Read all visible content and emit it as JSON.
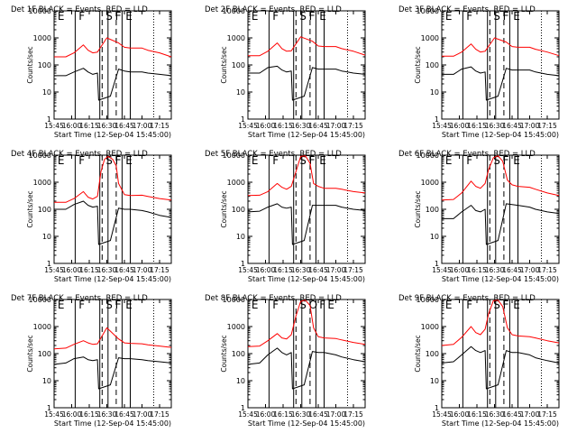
{
  "figure": {
    "ylabel": "Counts/sec",
    "xlabel": "Start Time (12-Sep-04 15:45:00)",
    "colors": {
      "events": "#000000",
      "lld": "#ff0000",
      "axes": "#000000",
      "background": "#ffffff"
    }
  },
  "chart_data": [
    {
      "type": "line",
      "title": "Det 1F BLACK = Events, RED = LLD",
      "xlabel": "Start Time (12-Sep-04 15:45:00)",
      "ylabel": "Counts/sec",
      "xlim": [
        "15:45",
        "17:25"
      ],
      "ylim": [
        1,
        10000
      ],
      "yscale": "log",
      "x_ticks": [
        "15:45",
        "16:00",
        "16:15",
        "16:30",
        "16:45",
        "17:00",
        "17:15"
      ],
      "y_ticks": [
        "1",
        "10",
        "100",
        "1000",
        "10000"
      ],
      "phase_letters": [
        "E",
        "F",
        "S",
        "F",
        "E"
      ],
      "series": [
        {
          "name": "Events",
          "color": "#000000",
          "x": [
            "15:45",
            "15:55",
            "16:02",
            "16:10",
            "16:14",
            "16:18",
            "16:22",
            "16:23",
            "16:33",
            "16:40",
            "16:45",
            "16:50",
            "17:00",
            "17:05",
            "17:15",
            "17:25"
          ],
          "y": [
            40,
            40,
            55,
            75,
            55,
            45,
            50,
            5,
            7,
            70,
            60,
            55,
            55,
            50,
            45,
            40
          ]
        },
        {
          "name": "LLD",
          "color": "#ff0000",
          "x": [
            "15:45",
            "15:55",
            "16:02",
            "16:10",
            "16:14",
            "16:18",
            "16:22",
            "16:30",
            "16:40",
            "16:45",
            "16:50",
            "17:00",
            "17:05",
            "17:15",
            "17:25"
          ],
          "y": [
            200,
            200,
            280,
            550,
            350,
            280,
            300,
            1000,
            650,
            450,
            420,
            420,
            350,
            280,
            200
          ]
        }
      ]
    },
    {
      "type": "line",
      "title": "Det 2F BLACK = Events, RED = LLD",
      "xlabel": "Start Time (12-Sep-04 15:45:00)",
      "ylabel": "Counts/sec",
      "xlim": [
        "15:45",
        "17:25"
      ],
      "ylim": [
        1,
        10000
      ],
      "yscale": "log",
      "x_ticks": [
        "15:45",
        "16:00",
        "16:15",
        "16:30",
        "16:45",
        "17:00",
        "17:15"
      ],
      "y_ticks": [
        "1",
        "10",
        "100",
        "1000",
        "10000"
      ],
      "phase_letters": [
        "E",
        "F",
        "S",
        "F",
        "E"
      ],
      "series": [
        {
          "name": "Events",
          "color": "#000000",
          "x": [
            "15:45",
            "15:55",
            "16:02",
            "16:10",
            "16:14",
            "16:18",
            "16:22",
            "16:23",
            "16:33",
            "16:40",
            "16:45",
            "16:50",
            "17:00",
            "17:05",
            "17:15",
            "17:25"
          ],
          "y": [
            50,
            50,
            80,
            90,
            65,
            55,
            60,
            5,
            7,
            80,
            70,
            70,
            70,
            60,
            50,
            45
          ]
        },
        {
          "name": "LLD",
          "color": "#ff0000",
          "x": [
            "15:45",
            "15:55",
            "16:02",
            "16:10",
            "16:14",
            "16:18",
            "16:22",
            "16:30",
            "16:40",
            "16:45",
            "16:50",
            "17:00",
            "17:05",
            "17:15",
            "17:25"
          ],
          "y": [
            220,
            220,
            320,
            650,
            400,
            320,
            330,
            1100,
            750,
            500,
            480,
            480,
            400,
            320,
            230
          ]
        }
      ]
    },
    {
      "type": "line",
      "title": "Det 3F BLACK = Events, RED = LLD",
      "xlabel": "Start Time (12-Sep-04 15:45:00)",
      "ylabel": "Counts/sec",
      "xlim": [
        "15:45",
        "17:25"
      ],
      "ylim": [
        1,
        10000
      ],
      "yscale": "log",
      "x_ticks": [
        "15:45",
        "16:00",
        "16:15",
        "16:30",
        "16:45",
        "17:00",
        "17:15"
      ],
      "y_ticks": [
        "1",
        "10",
        "100",
        "1000",
        "10000"
      ],
      "phase_letters": [
        "E",
        "F",
        "S",
        "F",
        "E"
      ],
      "series": [
        {
          "name": "Events",
          "color": "#000000",
          "x": [
            "15:45",
            "15:55",
            "16:02",
            "16:10",
            "16:14",
            "16:18",
            "16:22",
            "16:23",
            "16:33",
            "16:40",
            "16:45",
            "16:50",
            "17:00",
            "17:05",
            "17:15",
            "17:25"
          ],
          "y": [
            45,
            45,
            70,
            85,
            60,
            50,
            55,
            5,
            7,
            75,
            65,
            65,
            65,
            55,
            45,
            40
          ]
        },
        {
          "name": "LLD",
          "color": "#ff0000",
          "x": [
            "15:45",
            "15:55",
            "16:02",
            "16:10",
            "16:14",
            "16:18",
            "16:22",
            "16:30",
            "16:40",
            "16:45",
            "16:50",
            "17:00",
            "17:05",
            "17:15",
            "17:25"
          ],
          "y": [
            210,
            210,
            300,
            600,
            380,
            300,
            320,
            1000,
            700,
            480,
            450,
            450,
            380,
            300,
            220
          ]
        }
      ]
    },
    {
      "type": "line",
      "title": "Det 4F BLACK = Events, RED = LLD",
      "xlabel": "Start Time (12-Sep-04 15:45:00)",
      "ylabel": "Counts/sec",
      "xlim": [
        "15:45",
        "17:25"
      ],
      "ylim": [
        1,
        10000
      ],
      "yscale": "log",
      "x_ticks": [
        "15:45",
        "16:00",
        "16:15",
        "16:30",
        "16:45",
        "17:00",
        "17:15"
      ],
      "y_ticks": [
        "1",
        "10",
        "100",
        "1000",
        "10000"
      ],
      "phase_letters": [
        "E",
        "F",
        "S",
        "F",
        "E"
      ],
      "series": [
        {
          "name": "Events",
          "color": "#000000",
          "x": [
            "15:45",
            "15:55",
            "16:02",
            "16:10",
            "16:14",
            "16:18",
            "16:22",
            "16:23",
            "16:33",
            "16:40",
            "16:45",
            "16:50",
            "17:00",
            "17:05",
            "17:15",
            "17:25"
          ],
          "y": [
            100,
            100,
            150,
            200,
            140,
            120,
            130,
            5,
            7,
            110,
            100,
            100,
            90,
            80,
            60,
            50
          ]
        },
        {
          "name": "LLD",
          "color": "#ff0000",
          "x": [
            "15:45",
            "15:55",
            "16:02",
            "16:10",
            "16:14",
            "16:18",
            "16:22",
            "16:25",
            "16:28",
            "16:31",
            "16:35",
            "16:38",
            "16:40",
            "16:45",
            "16:50",
            "17:00",
            "17:05",
            "17:15",
            "17:25"
          ],
          "y": [
            180,
            180,
            250,
            450,
            280,
            240,
            300,
            2500,
            7000,
            9000,
            7000,
            4000,
            900,
            350,
            320,
            330,
            300,
            250,
            220
          ]
        }
      ]
    },
    {
      "type": "line",
      "title": "Det 5F BLACK = Events, RED = LLD",
      "xlabel": "Start Time (12-Sep-04 15:45:00)",
      "ylabel": "Counts/sec",
      "xlim": [
        "15:45",
        "17:25"
      ],
      "ylim": [
        1,
        10000
      ],
      "yscale": "log",
      "x_ticks": [
        "15:45",
        "16:00",
        "16:15",
        "16:30",
        "16:45",
        "17:00",
        "17:15"
      ],
      "y_ticks": [
        "1",
        "10",
        "100",
        "1000",
        "10000"
      ],
      "phase_letters": [
        "E",
        "F",
        "S",
        "F",
        "E"
      ],
      "series": [
        {
          "name": "Events",
          "color": "#000000",
          "x": [
            "15:45",
            "15:55",
            "16:02",
            "16:10",
            "16:14",
            "16:18",
            "16:22",
            "16:23",
            "16:33",
            "16:40",
            "16:45",
            "16:50",
            "17:00",
            "17:05",
            "17:15",
            "17:25"
          ],
          "y": [
            80,
            85,
            120,
            160,
            120,
            110,
            120,
            5,
            7,
            140,
            140,
            140,
            140,
            120,
            100,
            90
          ]
        },
        {
          "name": "LLD",
          "color": "#ff0000",
          "x": [
            "15:45",
            "15:55",
            "16:02",
            "16:10",
            "16:14",
            "16:18",
            "16:22",
            "16:26",
            "16:30",
            "16:34",
            "16:38",
            "16:41",
            "16:45",
            "16:50",
            "17:00",
            "17:05",
            "17:15",
            "17:25"
          ],
          "y": [
            320,
            330,
            450,
            900,
            650,
            550,
            700,
            2500,
            9000,
            9500,
            5000,
            900,
            700,
            600,
            600,
            550,
            450,
            400
          ]
        }
      ]
    },
    {
      "type": "line",
      "title": "Det 6F BLACK = Events, RED = LLD",
      "xlabel": "Start Time (12-Sep-04 15:45:00)",
      "ylabel": "Counts/sec",
      "xlim": [
        "15:45",
        "17:25"
      ],
      "ylim": [
        1,
        10000
      ],
      "yscale": "log",
      "x_ticks": [
        "15:45",
        "16:00",
        "16:15",
        "16:30",
        "16:45",
        "17:00",
        "17:15"
      ],
      "y_ticks": [
        "1",
        "10",
        "100",
        "1000",
        "10000"
      ],
      "phase_letters": [
        "E",
        "F",
        "S",
        "F",
        "E"
      ],
      "series": [
        {
          "name": "Events",
          "color": "#000000",
          "x": [
            "15:45",
            "15:55",
            "16:02",
            "16:10",
            "16:14",
            "16:18",
            "16:22",
            "16:23",
            "16:33",
            "16:40",
            "16:45",
            "16:50",
            "17:00",
            "17:05",
            "17:15",
            "17:25"
          ],
          "y": [
            45,
            45,
            80,
            140,
            90,
            80,
            100,
            5,
            7,
            160,
            150,
            140,
            120,
            100,
            80,
            70
          ]
        },
        {
          "name": "LLD",
          "color": "#ff0000",
          "x": [
            "15:45",
            "15:55",
            "16:02",
            "16:10",
            "16:14",
            "16:18",
            "16:22",
            "16:25",
            "16:29",
            "16:33",
            "16:37",
            "16:41",
            "16:45",
            "16:50",
            "17:00",
            "17:05",
            "17:15",
            "17:25"
          ],
          "y": [
            220,
            230,
            400,
            1100,
            700,
            600,
            900,
            3000,
            8000,
            9500,
            6000,
            1200,
            800,
            700,
            650,
            550,
            400,
            320
          ]
        }
      ]
    },
    {
      "type": "line",
      "title": "Det 7F BLACK = Events, RED = LLD",
      "xlabel": "Start Time (12-Sep-04 15:45:00)",
      "ylabel": "Counts/sec",
      "xlim": [
        "15:45",
        "17:25"
      ],
      "ylim": [
        1,
        10000
      ],
      "yscale": "log",
      "x_ticks": [
        "15:45",
        "16:00",
        "16:15",
        "16:30",
        "16:45",
        "17:00",
        "17:15"
      ],
      "y_ticks": [
        "1",
        "10",
        "100",
        "1000",
        "10000"
      ],
      "phase_letters": [
        "E",
        "F",
        "S",
        "F",
        "E"
      ],
      "series": [
        {
          "name": "Events",
          "color": "#000000",
          "x": [
            "15:45",
            "15:55",
            "16:02",
            "16:10",
            "16:14",
            "16:18",
            "16:22",
            "16:23",
            "16:33",
            "16:40",
            "16:45",
            "16:50",
            "17:00",
            "17:05",
            "17:15",
            "17:25"
          ],
          "y": [
            40,
            45,
            65,
            75,
            60,
            55,
            60,
            5,
            7,
            70,
            65,
            65,
            60,
            55,
            50,
            45
          ]
        },
        {
          "name": "LLD",
          "color": "#ff0000",
          "x": [
            "15:45",
            "15:55",
            "16:02",
            "16:10",
            "16:14",
            "16:18",
            "16:22",
            "16:30",
            "16:40",
            "16:45",
            "16:50",
            "17:00",
            "17:05",
            "17:15",
            "17:25"
          ],
          "y": [
            150,
            160,
            220,
            300,
            250,
            220,
            230,
            900,
            350,
            250,
            240,
            230,
            210,
            190,
            170
          ]
        }
      ]
    },
    {
      "type": "line",
      "title": "Det 8F BLACK = Events, RED = LLD",
      "xlabel": "Start Time (12-Sep-04 15:45:00)",
      "ylabel": "Counts/sec",
      "xlim": [
        "15:45",
        "17:25"
      ],
      "ylim": [
        1,
        10000
      ],
      "yscale": "log",
      "x_ticks": [
        "15:45",
        "16:00",
        "16:15",
        "16:30",
        "16:45",
        "17:00",
        "17:15"
      ],
      "y_ticks": [
        "1",
        "10",
        "100",
        "1000",
        "10000"
      ],
      "phase_letters": [
        "E",
        "F",
        "S",
        "O",
        "F",
        "E"
      ],
      "series": [
        {
          "name": "Events",
          "color": "#000000",
          "x": [
            "15:45",
            "15:55",
            "16:02",
            "16:10",
            "16:14",
            "16:18",
            "16:22",
            "16:23",
            "16:33",
            "16:40",
            "16:45",
            "16:50",
            "17:00",
            "17:05",
            "17:15",
            "17:25"
          ],
          "y": [
            40,
            45,
            90,
            160,
            110,
            90,
            110,
            5,
            7,
            120,
            110,
            110,
            90,
            75,
            60,
            50
          ]
        },
        {
          "name": "LLD",
          "color": "#ff0000",
          "x": [
            "15:45",
            "15:55",
            "16:02",
            "16:10",
            "16:14",
            "16:18",
            "16:22",
            "16:26",
            "16:30",
            "16:34",
            "16:38",
            "16:41",
            "16:45",
            "16:50",
            "17:00",
            "17:05",
            "17:15",
            "17:25"
          ],
          "y": [
            180,
            190,
            300,
            550,
            380,
            350,
            500,
            2500,
            8500,
            9500,
            6000,
            900,
            420,
            380,
            360,
            320,
            260,
            220
          ]
        }
      ]
    },
    {
      "type": "line",
      "title": "Det 9F BLACK = Events, RED = LLD",
      "xlabel": "Start Time (12-Sep-04 15:45:00)",
      "ylabel": "Counts/sec",
      "xlim": [
        "15:45",
        "17:25"
      ],
      "ylim": [
        1,
        10000
      ],
      "yscale": "log",
      "x_ticks": [
        "15:45",
        "16:00",
        "16:15",
        "16:30",
        "16:45",
        "17:00",
        "17:15"
      ],
      "y_ticks": [
        "1",
        "10",
        "100",
        "1000",
        "10000"
      ],
      "phase_letters": [
        "E",
        "F",
        "S",
        "F",
        "E"
      ],
      "series": [
        {
          "name": "Events",
          "color": "#000000",
          "x": [
            "15:45",
            "15:55",
            "16:02",
            "16:10",
            "16:14",
            "16:18",
            "16:22",
            "16:23",
            "16:33",
            "16:40",
            "16:45",
            "16:50",
            "17:00",
            "17:05",
            "17:15",
            "17:25"
          ],
          "y": [
            45,
            50,
            90,
            180,
            130,
            110,
            130,
            5,
            7,
            130,
            110,
            110,
            90,
            70,
            55,
            45
          ]
        },
        {
          "name": "LLD",
          "color": "#ff0000",
          "x": [
            "15:45",
            "15:55",
            "16:02",
            "16:10",
            "16:14",
            "16:18",
            "16:22",
            "16:25",
            "16:29",
            "16:33",
            "16:37",
            "16:41",
            "16:45",
            "16:50",
            "17:00",
            "17:05",
            "17:15",
            "17:25"
          ],
          "y": [
            200,
            220,
            400,
            1000,
            600,
            500,
            800,
            3000,
            9000,
            9500,
            5500,
            900,
            500,
            450,
            420,
            380,
            300,
            250
          ]
        }
      ]
    }
  ]
}
